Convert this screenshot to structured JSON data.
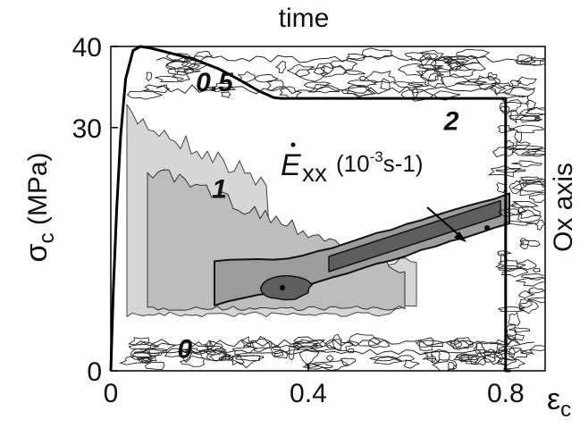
{
  "chart_data": {
    "type": "heatmap",
    "title": "time",
    "xlabel": "ε",
    "xlabel_sub": "c",
    "ylabel_main": "σ",
    "ylabel_sub": "c",
    "ylabel_unit": " (MPa)",
    "right_label": "Ox axis",
    "quantity": {
      "symbol": "E",
      "subscript": "xx",
      "unit_prefix": " (10",
      "unit_exp": "-3",
      "unit_suffix": "s-1)"
    },
    "xlim": [
      0,
      0.88
    ],
    "ylim": [
      0,
      40
    ],
    "x_ticks": [
      {
        "value": 0,
        "label": "0"
      },
      {
        "value": 0.4,
        "label": "0.4"
      },
      {
        "value": 0.8,
        "label": "0.8"
      }
    ],
    "y_ticks": [
      {
        "value": 0,
        "label": "0"
      },
      {
        "value": 30,
        "label": "30"
      },
      {
        "value": 40,
        "label": "40"
      }
    ],
    "contour_levels": [
      {
        "label": "0",
        "strain": 0.15,
        "stress": 1.6
      },
      {
        "label": "0.5",
        "strain": 0.21,
        "stress": 34.5
      },
      {
        "label": "1",
        "strain": 0.22,
        "stress": 21.3
      },
      {
        "label": "2",
        "strain": 0.69,
        "stress": 29.7
      }
    ],
    "stress_strain_curve": {
      "x": [
        0.0,
        0.005,
        0.012,
        0.02,
        0.03,
        0.045,
        0.06,
        0.08,
        0.12,
        0.17,
        0.22,
        0.26,
        0.3,
        0.33,
        0.345,
        0.8,
        0.8,
        0.81
      ],
      "y": [
        0.0,
        10.0,
        20.0,
        29.0,
        36.0,
        39.5,
        40.0,
        39.8,
        39.2,
        38.4,
        37.2,
        35.9,
        34.5,
        33.7,
        33.6,
        33.6,
        0.0,
        0.0
      ]
    }
  }
}
